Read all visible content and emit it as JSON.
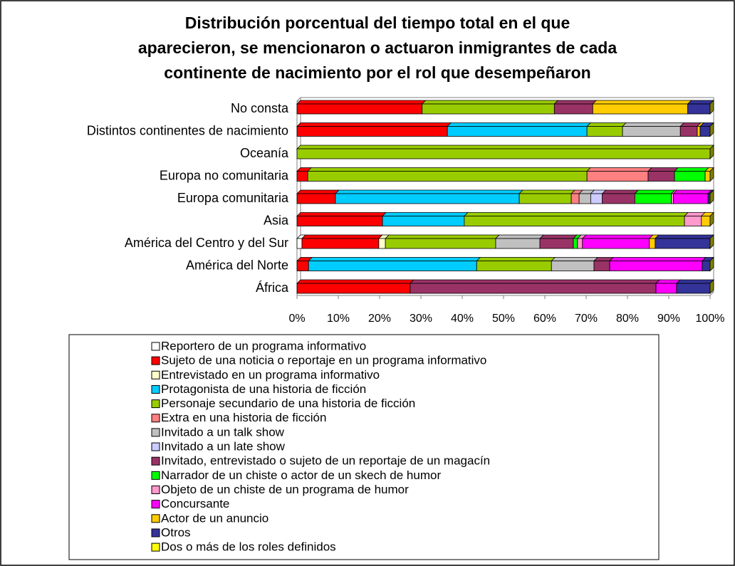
{
  "chart_data": {
    "type": "stacked-bar-horizontal",
    "title": [
      "Distribución porcentual del tiempo total en el que",
      "aparecieron, se mencionaron o actuaron inmigrantes de cada",
      "continente de nacimiento por el rol que desempeñaron"
    ],
    "categories": [
      "África",
      "América del Norte",
      "América del Centro y del Sur",
      "Asia",
      "Europa comunitaria",
      "Europa no comunitaria",
      "Oceanía",
      "Distintos continentes de nacimiento",
      "No consta"
    ],
    "xlim": [
      0,
      100
    ],
    "xticks": [
      {
        "value": 0,
        "label": "0%"
      },
      {
        "value": 10,
        "label": "10%"
      },
      {
        "value": 20,
        "label": "20%"
      },
      {
        "value": 30,
        "label": "30%"
      },
      {
        "value": 40,
        "label": "40%"
      },
      {
        "value": 50,
        "label": "50%"
      },
      {
        "value": 60,
        "label": "60%"
      },
      {
        "value": 70,
        "label": "70%"
      },
      {
        "value": 80,
        "label": "80%"
      },
      {
        "value": 90,
        "label": "90%"
      },
      {
        "value": 100,
        "label": "100%"
      }
    ],
    "series": [
      {
        "name": "Reportero de un programa informativo",
        "color": "#ffffff",
        "values": [
          0,
          0,
          1.2,
          0,
          0,
          0,
          0,
          0,
          0
        ]
      },
      {
        "name": "Sujeto de una noticia o reportaje en un programa informativo",
        "color": "#ff0000",
        "values": [
          27.4,
          2.8,
          18.6,
          20.7,
          9.3,
          2.6,
          0,
          36.4,
          30.3
        ]
      },
      {
        "name": "Entrevistado en un programa informativo",
        "color": "#ffffcc",
        "values": [
          0,
          0,
          1.6,
          0,
          0,
          0,
          0,
          0,
          0
        ]
      },
      {
        "name": "Protagonista de una historia de ficción",
        "color": "#00ccff",
        "values": [
          0,
          40.7,
          0,
          19.8,
          44.5,
          0,
          0,
          33.8,
          0
        ]
      },
      {
        "name": "Personaje secundario de una historia de ficción",
        "color": "#99cc00",
        "values": [
          0,
          18.1,
          26.7,
          53.3,
          12.6,
          67.6,
          100,
          8.6,
          32
        ]
      },
      {
        "name": "Extra en una historia de ficción",
        "color": "#ff8080",
        "values": [
          0,
          0,
          0,
          0,
          1.9,
          14.8,
          0,
          0,
          0
        ]
      },
      {
        "name": "Invitado a un talk show",
        "color": "#c0c0c0",
        "values": [
          0,
          10.3,
          10.7,
          0,
          2.8,
          0,
          0,
          14,
          0
        ]
      },
      {
        "name": "Invitado a un late show",
        "color": "#ccccff",
        "values": [
          0,
          0,
          0,
          0,
          2.8,
          0,
          0,
          0,
          0
        ]
      },
      {
        "name": "Invitado, entrevistado o sujeto de un reportaje de un magacín",
        "color": "#993366",
        "values": [
          59.5,
          3.8,
          8.1,
          0,
          7.9,
          6.4,
          0,
          4.1,
          9.3
        ]
      },
      {
        "name": "Narrador de un chiste o actor de un skech de humor",
        "color": "#00ff00",
        "values": [
          0,
          0,
          1,
          0,
          8.8,
          7.4,
          0,
          0,
          0
        ]
      },
      {
        "name": "Objeto de un chiste de un programa de humor",
        "color": "#ff99cc",
        "values": [
          0,
          0,
          1.2,
          4.1,
          0.5,
          0,
          0,
          0,
          0
        ]
      },
      {
        "name": "Concursante",
        "color": "#ff00ff",
        "values": [
          5,
          22.4,
          16.2,
          0,
          8.4,
          0,
          0,
          0,
          0
        ]
      },
      {
        "name": "Actor de un anuncio",
        "color": "#ffcc00",
        "values": [
          0,
          0,
          1.4,
          2.1,
          0,
          1.2,
          0,
          0.7,
          23
        ]
      },
      {
        "name": "Otros",
        "color": "#333399",
        "values": [
          8.1,
          1.9,
          13.3,
          0,
          0.5,
          0,
          0,
          2.4,
          5.4
        ]
      },
      {
        "name": "Dos o más de los roles definidos",
        "color": "#ffff00",
        "values": [
          0,
          0,
          0,
          0,
          0,
          0,
          0,
          0,
          0
        ]
      }
    ]
  }
}
